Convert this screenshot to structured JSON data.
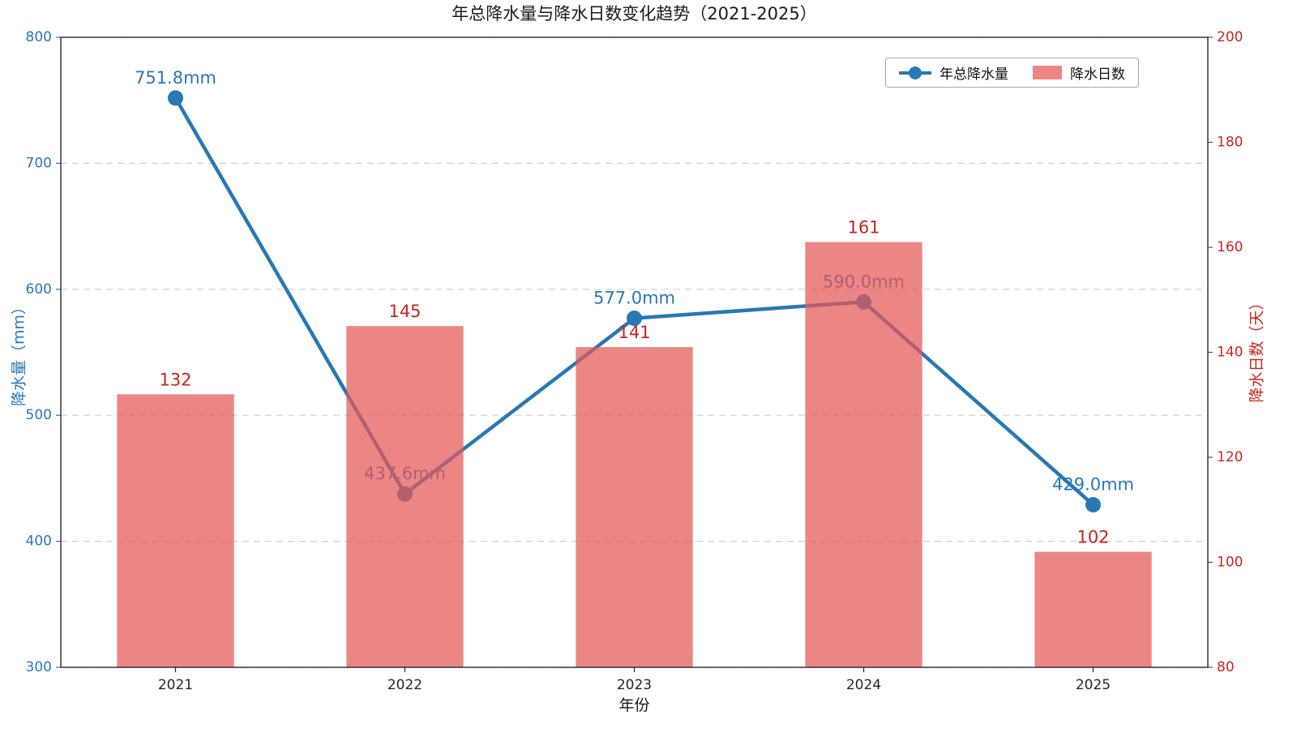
{
  "chart_data": {
    "type": "line+bar combo (dual axis)",
    "title": "年总降水量与降水日数变化趋势（2021-2025）",
    "xlabel": "年份",
    "ylabel_left": "降水量（mm）",
    "ylabel_right": "降水日数（天）",
    "categories": [
      "2021",
      "2022",
      "2023",
      "2024",
      "2025"
    ],
    "series": [
      {
        "name": "年总降水量",
        "type": "line",
        "axis": "left",
        "unit": "mm",
        "values": [
          751.8,
          437.6,
          577.0,
          590.0,
          429.0
        ],
        "labels": [
          "751.8mm",
          "437.6mm",
          "577.0mm",
          "590.0mm",
          "429.0mm"
        ],
        "color": "#2878b5"
      },
      {
        "name": "降水日数",
        "type": "bar",
        "axis": "right",
        "unit": "天",
        "values": [
          132,
          145,
          141,
          161,
          102
        ],
        "labels": [
          "132",
          "145",
          "141",
          "161",
          "102"
        ],
        "color": "#e45756",
        "bar_opacity": 0.72,
        "label_color": "#c82423"
      }
    ],
    "ylim_left": [
      300,
      800
    ],
    "ylim_right": [
      80,
      200
    ],
    "yticks_left": [
      300,
      400,
      500,
      600,
      700,
      800
    ],
    "yticks_right": [
      80,
      100,
      120,
      140,
      160,
      180,
      200
    ],
    "axis_colors": {
      "left": "#2878b5",
      "right": "#c82423",
      "x": "#262626"
    },
    "grid": {
      "on": true,
      "style": "dashed",
      "color": "#cfcfcf"
    },
    "legend": {
      "position": "upper right",
      "entries": [
        "年总降水量",
        "降水日数"
      ]
    },
    "background": "#ffffff"
  }
}
